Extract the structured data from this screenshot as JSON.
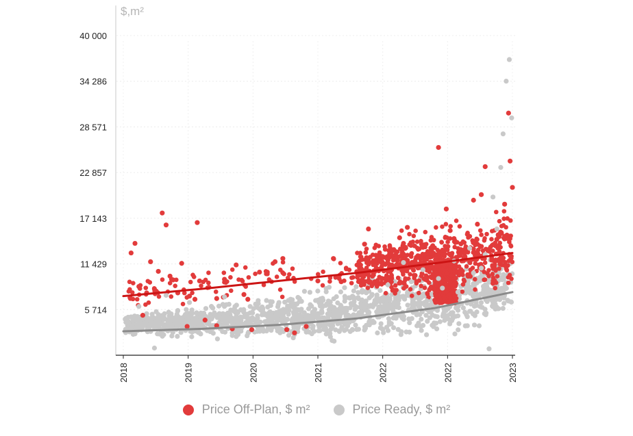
{
  "chart_data": {
    "type": "scatter",
    "ylabel": "$,m²",
    "xlabel": "",
    "yticks": [
      "5 714",
      "11 429",
      "17 143",
      "22 857",
      "28 571",
      "34 286",
      "40 000"
    ],
    "ytick_values": [
      5714,
      11429,
      17143,
      22857,
      28571,
      34286,
      40000
    ],
    "ylim": [
      0,
      40000
    ],
    "xticks": [
      "2018",
      "2019",
      "2020",
      "2021",
      "2022",
      "2022",
      "2023"
    ],
    "xlim": [
      2018.0,
      2023.0
    ],
    "grid": true,
    "legend_position": "bottom",
    "colors": {
      "off_plan": "#e23b3b",
      "ready": "#c9c9c9",
      "off_plan_trend": "#cc1414",
      "ready_trend": "#8a8a8a"
    },
    "series": [
      {
        "name": "Price Off-Plan, $ m²",
        "color": "#e23b3b",
        "trend": [
          [
            2018.0,
            7400
          ],
          [
            2019.0,
            8300
          ],
          [
            2020.0,
            9300
          ],
          [
            2021.0,
            10300
          ],
          [
            2022.0,
            11500
          ],
          [
            2023.0,
            12800
          ]
        ],
        "points": [
          [
            2018.1,
            12800
          ],
          [
            2018.2,
            8600
          ],
          [
            2018.3,
            7800
          ],
          [
            2018.45,
            10500
          ],
          [
            2018.5,
            17800
          ],
          [
            2018.55,
            16300
          ],
          [
            2018.6,
            9900
          ],
          [
            2018.7,
            7800
          ],
          [
            2018.85,
            7400
          ],
          [
            2018.95,
            16600
          ],
          [
            2019.1,
            8500
          ],
          [
            2019.2,
            7100
          ],
          [
            2019.3,
            9500
          ],
          [
            2019.45,
            11300
          ],
          [
            2019.6,
            7000
          ],
          [
            2019.75,
            10400
          ],
          [
            2019.95,
            11700
          ],
          [
            2020.1,
            3200
          ],
          [
            2020.2,
            2800
          ],
          [
            2020.35,
            3600
          ],
          [
            2020.5,
            9300
          ],
          [
            2021.1,
            13900
          ],
          [
            2021.15,
            15800
          ],
          [
            2021.3,
            10800
          ],
          [
            2021.45,
            13200
          ],
          [
            2021.5,
            12600
          ],
          [
            2021.6,
            14000
          ],
          [
            2021.7,
            11000
          ],
          [
            2021.85,
            13500
          ],
          [
            2022.0,
            10700
          ],
          [
            2022.05,
            26000
          ],
          [
            2022.15,
            18300
          ],
          [
            2022.25,
            14600
          ],
          [
            2022.4,
            12900
          ],
          [
            2022.55,
            16400
          ],
          [
            2022.6,
            20100
          ],
          [
            2022.75,
            9000
          ],
          [
            2022.8,
            14500
          ],
          [
            2022.85,
            12200
          ],
          [
            2022.9,
            18900
          ],
          [
            2022.95,
            30300
          ],
          [
            2022.97,
            24300
          ],
          [
            2023.0,
            21000
          ],
          [
            2022.65,
            23600
          ],
          [
            2022.5,
            19400
          ],
          [
            2022.35,
            11800
          ],
          [
            2022.2,
            15600
          ],
          [
            2021.95,
            9800
          ],
          [
            2021.8,
            12400
          ],
          [
            2021.65,
            16000
          ],
          [
            2021.55,
            14700
          ],
          [
            2021.4,
            11900
          ],
          [
            2021.25,
            12500
          ],
          [
            2021.2,
            9900
          ],
          [
            2020.8,
            9200
          ],
          [
            2020.7,
            12100
          ],
          [
            2019.85,
            10400
          ],
          [
            2019.55,
            7600
          ],
          [
            2019.4,
            3300
          ],
          [
            2019.2,
            3700
          ],
          [
            2018.98,
            9300
          ],
          [
            2018.92,
            7000
          ],
          [
            2018.82,
            3600
          ],
          [
            2018.62,
            9500
          ],
          [
            2018.4,
            8300
          ],
          [
            2018.25,
            5000
          ],
          [
            2018.15,
            14000
          ],
          [
            2018.35,
            11700
          ],
          [
            2018.75,
            11500
          ],
          [
            2019.05,
            4400
          ],
          [
            2019.65,
            3200
          ],
          [
            2020.05,
            12100
          ]
        ]
      },
      {
        "name": "Price Ready, $ m²",
        "color": "#c9c9c9",
        "trend": [
          [
            2018.0,
            3000
          ],
          [
            2019.0,
            3300
          ],
          [
            2020.0,
            3800
          ],
          [
            2021.0,
            4600
          ],
          [
            2022.0,
            5900
          ],
          [
            2023.0,
            7900
          ]
        ],
        "points": [
          [
            2018.1,
            4800
          ],
          [
            2018.2,
            6100
          ],
          [
            2018.3,
            5200
          ],
          [
            2018.4,
            900
          ],
          [
            2018.55,
            7500
          ],
          [
            2018.7,
            5600
          ],
          [
            2018.85,
            6600
          ],
          [
            2019.0,
            4200
          ],
          [
            2019.15,
            5900
          ],
          [
            2019.3,
            7300
          ],
          [
            2019.5,
            4700
          ],
          [
            2019.7,
            6400
          ],
          [
            2019.9,
            5100
          ],
          [
            2020.1,
            5800
          ],
          [
            2020.3,
            4000
          ],
          [
            2020.5,
            6900
          ],
          [
            2020.7,
            5300
          ],
          [
            2020.9,
            7200
          ],
          [
            2021.1,
            6000
          ],
          [
            2021.3,
            8100
          ],
          [
            2021.5,
            7100
          ],
          [
            2021.7,
            9200
          ],
          [
            2021.9,
            6800
          ],
          [
            2022.1,
            8400
          ],
          [
            2022.3,
            7900
          ],
          [
            2022.5,
            10300
          ],
          [
            2022.65,
            12600
          ],
          [
            2022.8,
            15800
          ],
          [
            2022.88,
            27700
          ],
          [
            2022.92,
            34300
          ],
          [
            2022.96,
            37000
          ],
          [
            2022.99,
            29700
          ],
          [
            2022.85,
            23500
          ],
          [
            2022.75,
            19800
          ],
          [
            2022.6,
            10900
          ],
          [
            2022.45,
            13400
          ],
          [
            2022.25,
            11800
          ],
          [
            2022.05,
            9600
          ],
          [
            2021.85,
            10700
          ],
          [
            2021.6,
            11600
          ],
          [
            2021.4,
            8800
          ],
          [
            2021.2,
            9700
          ],
          [
            2020.95,
            4500
          ],
          [
            2020.6,
            3400
          ],
          [
            2020.2,
            2600
          ],
          [
            2019.8,
            3000
          ],
          [
            2019.4,
            2800
          ],
          [
            2019.1,
            3900
          ],
          [
            2018.8,
            3100
          ],
          [
            2018.5,
            2700
          ],
          [
            2018.25,
            3600
          ],
          [
            2022.7,
            800
          ]
        ]
      }
    ]
  }
}
